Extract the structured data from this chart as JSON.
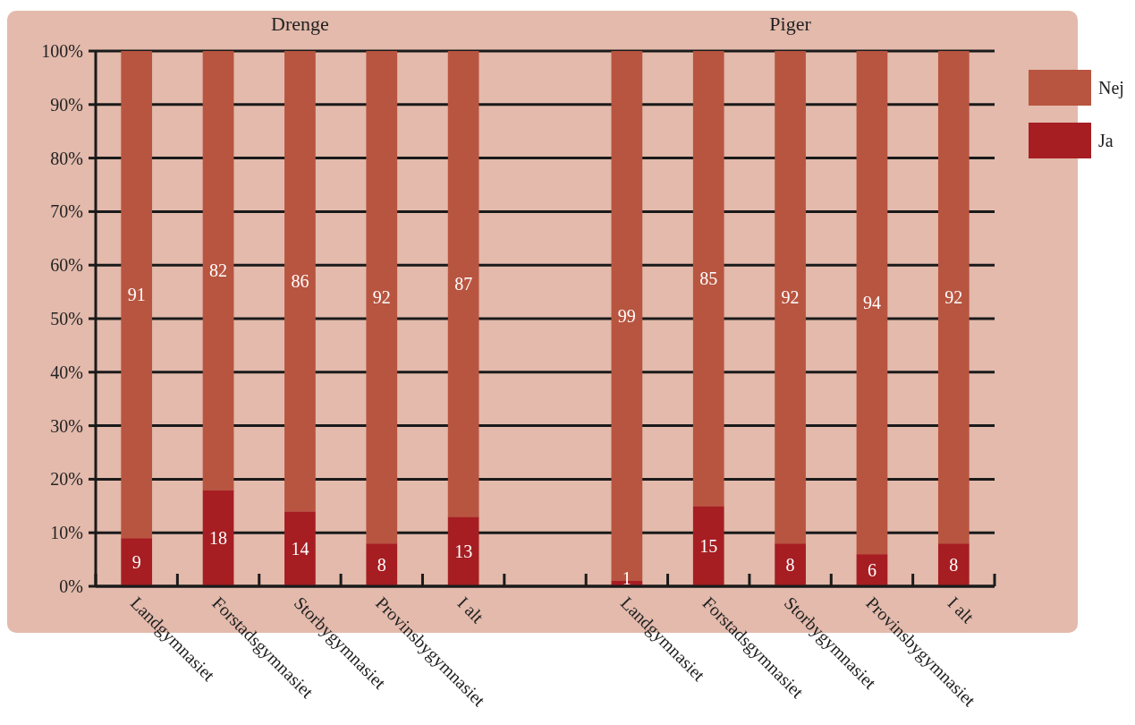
{
  "chart_data": {
    "type": "bar",
    "stacked": true,
    "categories": [
      "Landgymnasiet",
      "Forstadsgymnasiet",
      "Storbygymnasiet",
      "Provinsbygymnasiet",
      "I alt",
      null,
      "Landgymnasiet",
      "Forstadsgymnasiet",
      "Storbygymnasiet",
      "Provinsbygymnasiet",
      "I alt"
    ],
    "series": [
      {
        "name": "Ja",
        "color": "#a61e22",
        "values": [
          9,
          18,
          14,
          8,
          13,
          null,
          1,
          15,
          8,
          6,
          8
        ]
      },
      {
        "name": "Nej",
        "color": "#b85540",
        "values": [
          91,
          82,
          86,
          92,
          87,
          null,
          99,
          85,
          92,
          94,
          92
        ]
      }
    ],
    "ylim": [
      0,
      100
    ],
    "yticks": [
      {
        "value": 0,
        "label": "0%"
      },
      {
        "value": 10,
        "label": "10%"
      },
      {
        "value": 20,
        "label": "20%"
      },
      {
        "value": 30,
        "label": "30%"
      },
      {
        "value": 40,
        "label": "40%"
      },
      {
        "value": 50,
        "label": "50%"
      },
      {
        "value": 60,
        "label": "60%"
      },
      {
        "value": 70,
        "label": "70%"
      },
      {
        "value": 80,
        "label": "80%"
      },
      {
        "value": 90,
        "label": "90%"
      },
      {
        "value": 100,
        "label": "100%"
      }
    ],
    "grid": "y",
    "legend": "right",
    "data_labels": true,
    "annotations": [
      "Drenge",
      "Piger"
    ]
  }
}
